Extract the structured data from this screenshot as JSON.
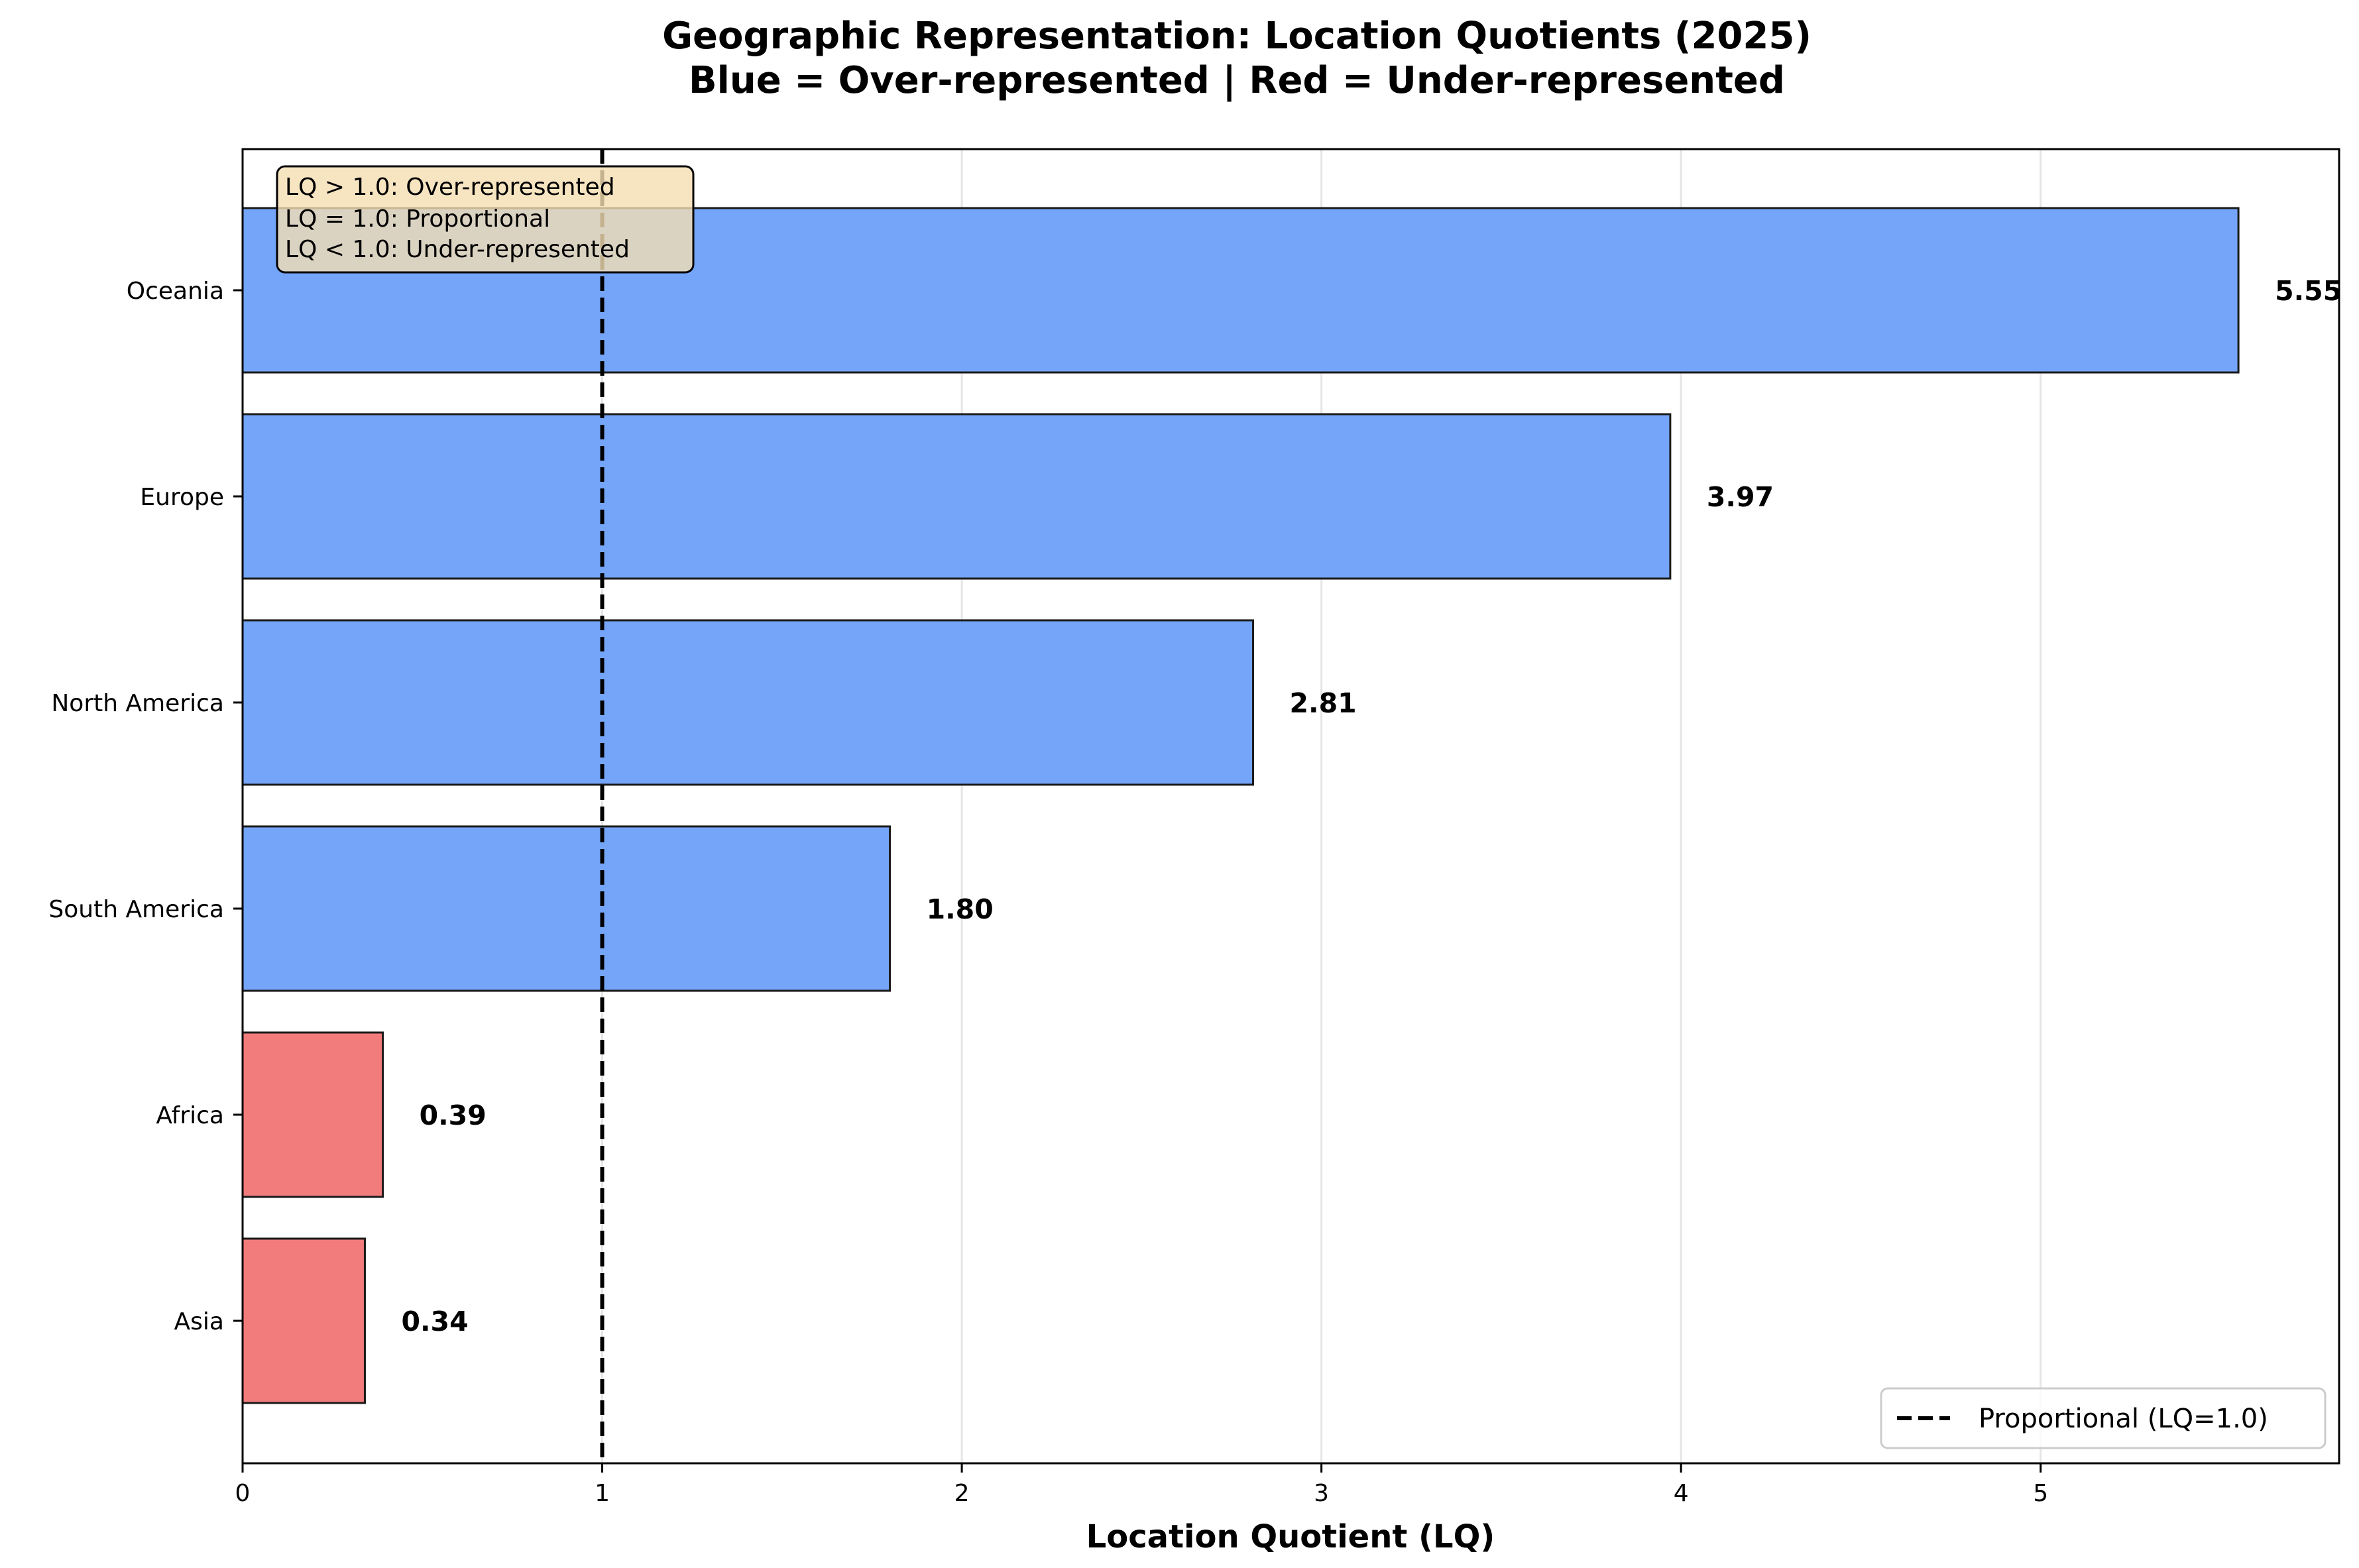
{
  "chart_data": {
    "type": "bar",
    "orientation": "horizontal",
    "title": "Geographic Representation: Location Quotients (2025)",
    "subtitle": "Blue = Over-represented | Red = Under-represented",
    "xlabel": "Location Quotient (LQ)",
    "ylabel": "",
    "xlim": [
      0,
      5.83
    ],
    "xticks": [
      "0",
      "1",
      "2",
      "3",
      "4",
      "5"
    ],
    "grid": "vertical",
    "categories": [
      "Oceania",
      "Europe",
      "North America",
      "South America",
      "Africa",
      "Asia"
    ],
    "values": [
      5.55,
      3.97,
      2.81,
      1.8,
      0.39,
      0.34
    ],
    "value_labels": [
      "5.55",
      "3.97",
      "2.81",
      "1.80",
      "0.39",
      "0.34"
    ],
    "bar_colors": [
      "#74a5f8",
      "#74a5f8",
      "#74a5f8",
      "#74a5f8",
      "#f27c7c",
      "#f27c7c"
    ],
    "reference_line": {
      "value": 1.0,
      "style": "dashed",
      "color": "#000000"
    },
    "annotation": {
      "lines": [
        "LQ > 1.0: Over-represented",
        "LQ = 1.0: Proportional",
        "LQ < 1.0: Under-represented"
      ],
      "placement": "top-left",
      "background": "#f5deb3"
    },
    "legend": {
      "entries": [
        "Proportional (LQ=1.0)"
      ],
      "placement": "bottom-right"
    }
  }
}
